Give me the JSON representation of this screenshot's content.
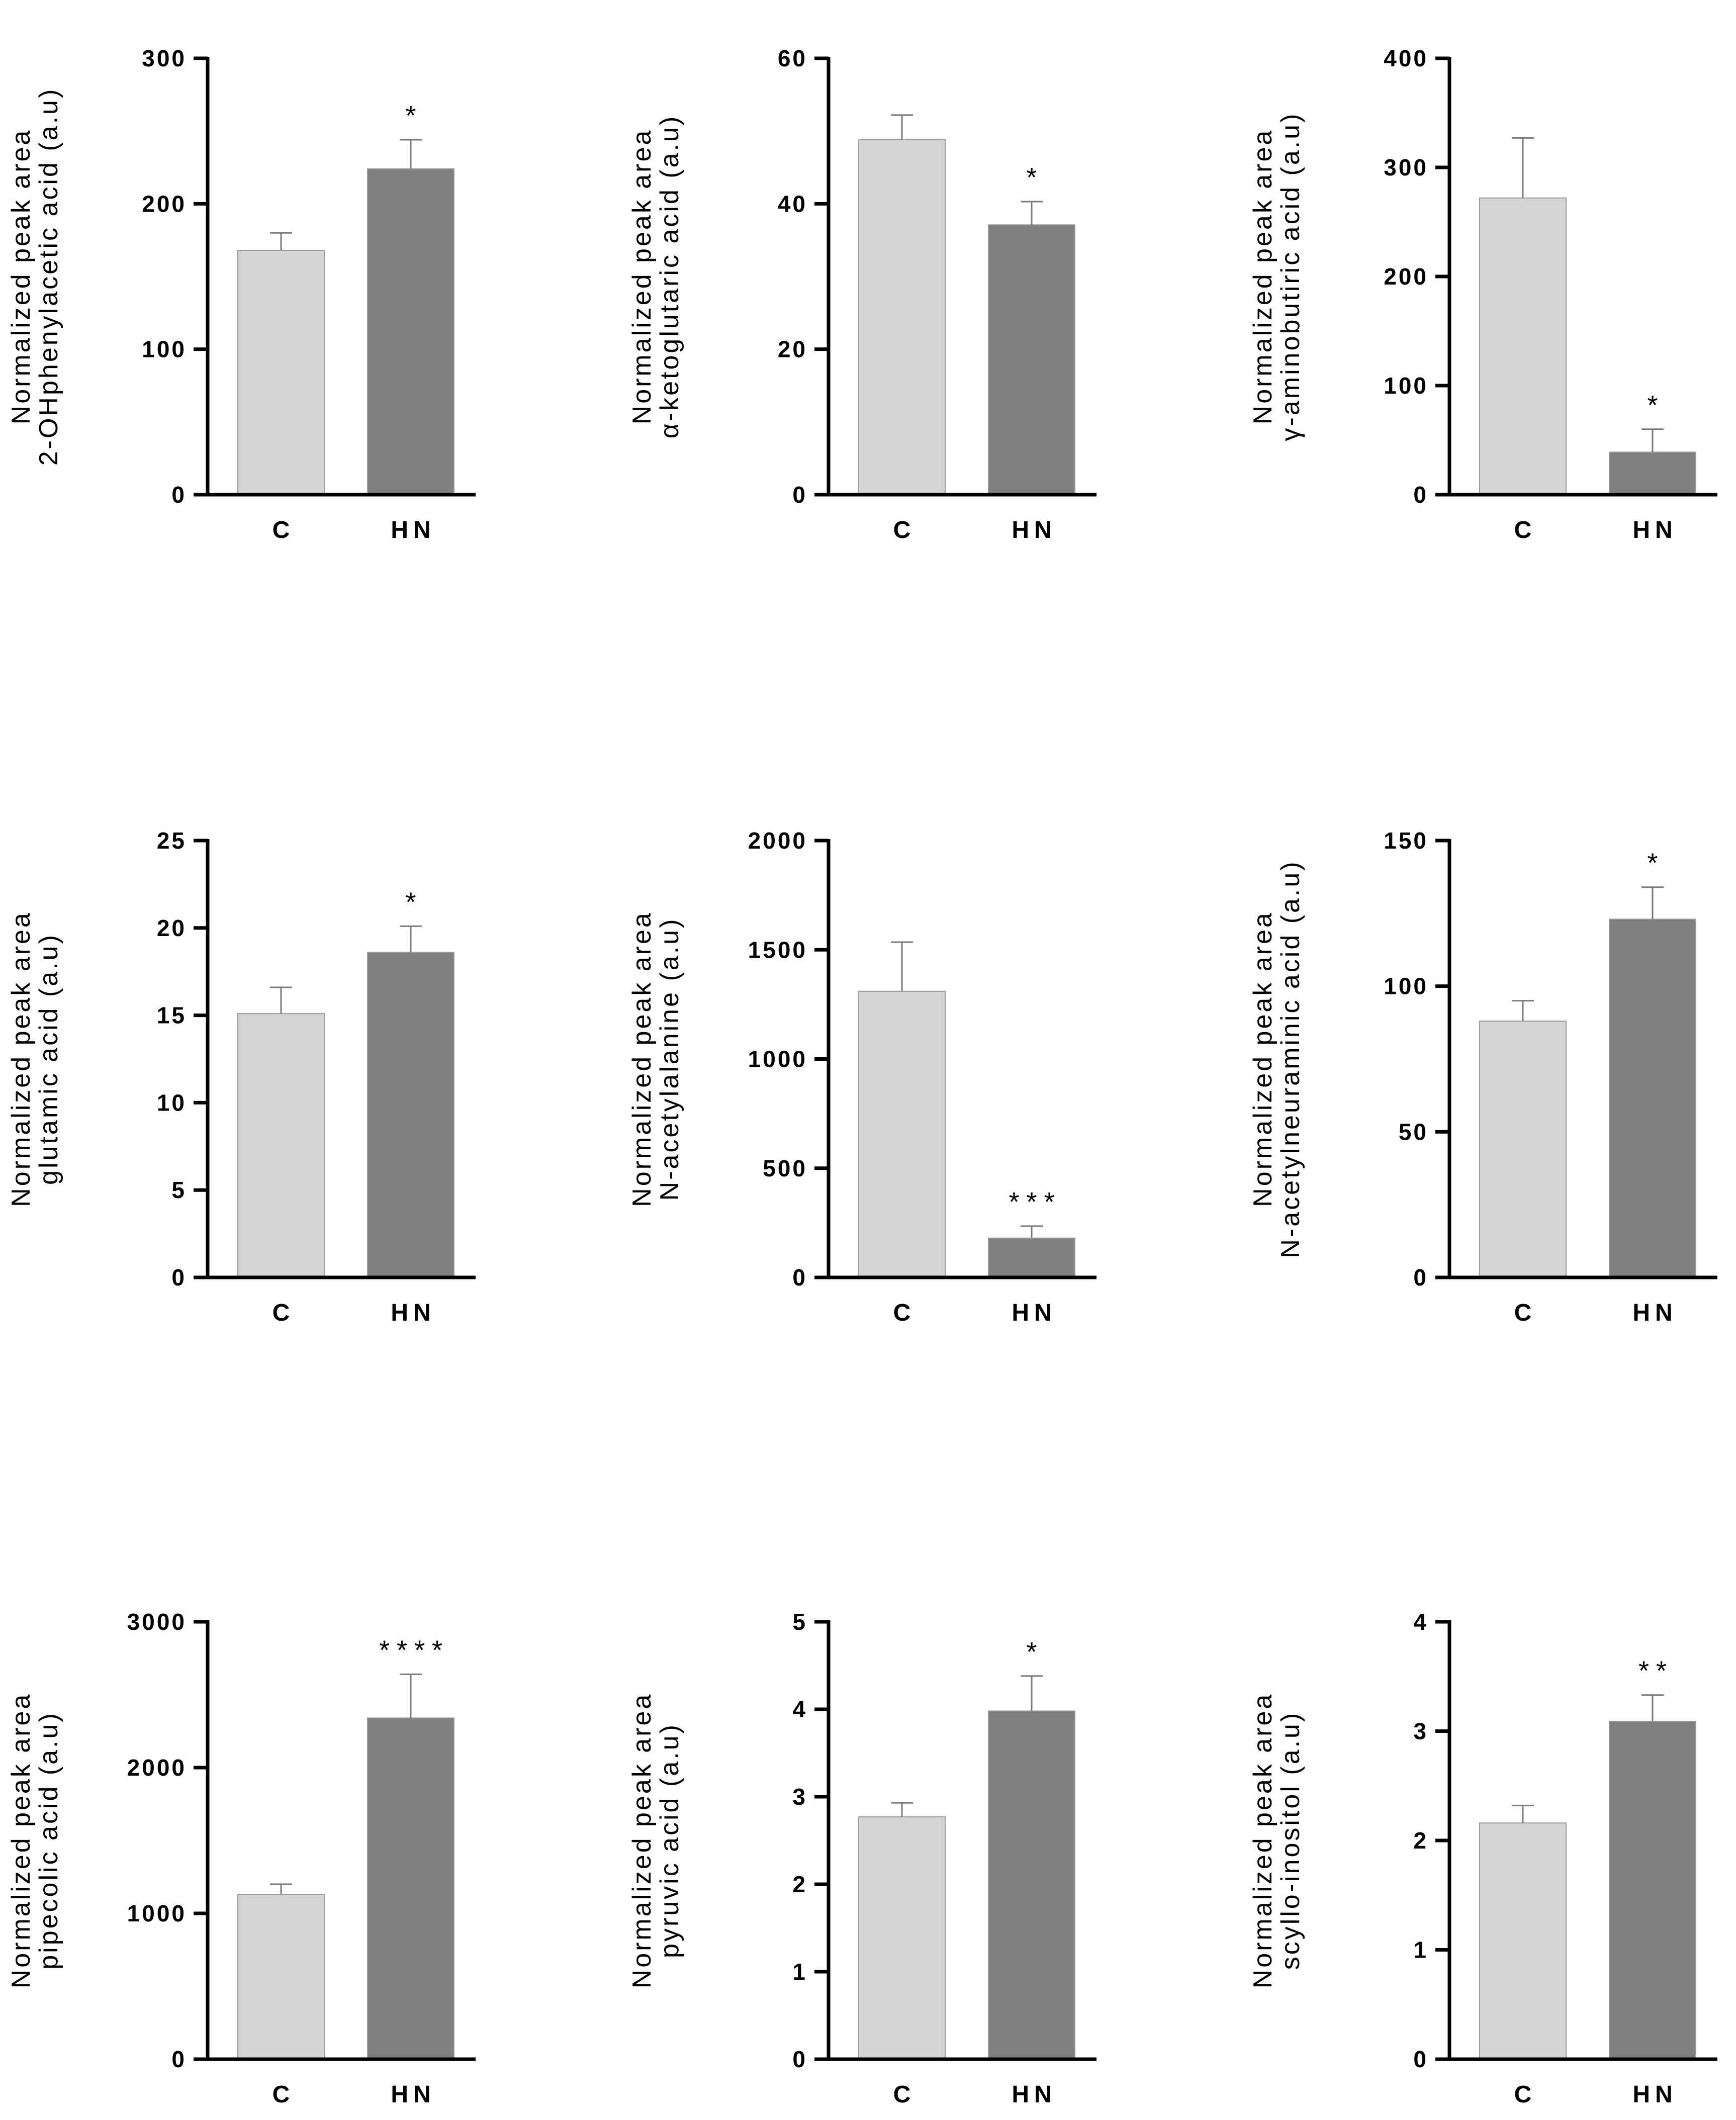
{
  "chart_data": [
    {
      "type": "bar",
      "title": "",
      "ylabel": [
        "Normalized peak area",
        "2-OHphenylacetic acid (a.u)"
      ],
      "xlabel": "",
      "categories": [
        "C",
        "HN"
      ],
      "values": [
        168,
        224
      ],
      "errors": [
        12,
        20
      ],
      "significance": [
        "",
        "*"
      ],
      "ylim": [
        0,
        300
      ],
      "yticks": [
        0,
        100,
        200,
        300
      ],
      "grid": false,
      "colors": [
        "#d4d4d4",
        "#7f7f7f"
      ]
    },
    {
      "type": "bar",
      "title": "",
      "ylabel": [
        "Normalized peak area",
        "α-ketoglutaric acid (a.u)"
      ],
      "xlabel": "",
      "categories": [
        "C",
        "HN"
      ],
      "values": [
        48.8,
        37.1
      ],
      "errors": [
        3.4,
        3.2
      ],
      "significance": [
        "",
        "*"
      ],
      "ylim": [
        0,
        60
      ],
      "yticks": [
        0,
        20,
        40,
        60
      ],
      "grid": false,
      "colors": [
        "#d4d4d4",
        "#7f7f7f"
      ]
    },
    {
      "type": "bar",
      "title": "",
      "ylabel": [
        "Normalized peak area",
        "γ-aminobutiric acid (a.u)"
      ],
      "xlabel": "",
      "categories": [
        "C",
        "HN"
      ],
      "values": [
        272,
        39
      ],
      "errors": [
        55,
        21
      ],
      "significance": [
        "",
        "*"
      ],
      "ylim": [
        0,
        400
      ],
      "yticks": [
        0,
        100,
        200,
        300,
        400
      ],
      "grid": false,
      "colors": [
        "#d4d4d4",
        "#7f7f7f"
      ]
    },
    {
      "type": "bar",
      "title": "",
      "ylabel": [
        "Normalized peak area",
        "glutamic acid (a.u)"
      ],
      "xlabel": "",
      "categories": [
        "C",
        "HN"
      ],
      "values": [
        15.1,
        18.6
      ],
      "errors": [
        1.5,
        1.5
      ],
      "significance": [
        "",
        "*"
      ],
      "ylim": [
        0,
        25
      ],
      "yticks": [
        0,
        5,
        10,
        15,
        20,
        25
      ],
      "grid": false,
      "colors": [
        "#d4d4d4",
        "#7f7f7f"
      ]
    },
    {
      "type": "bar",
      "title": "",
      "ylabel": [
        "Normalized peak area",
        "N-acetylalanine (a.u)"
      ],
      "xlabel": "",
      "categories": [
        "C",
        "HN"
      ],
      "values": [
        1310,
        180
      ],
      "errors": [
        225,
        55
      ],
      "significance": [
        "",
        "***"
      ],
      "ylim": [
        0,
        2000
      ],
      "yticks": [
        0,
        500,
        1000,
        1500,
        2000
      ],
      "grid": false,
      "colors": [
        "#d4d4d4",
        "#7f7f7f"
      ]
    },
    {
      "type": "bar",
      "title": "",
      "ylabel": [
        "Normalized peak area",
        "N-acetylneuraminic acid (a.u)"
      ],
      "xlabel": "",
      "categories": [
        "C",
        "HN"
      ],
      "values": [
        88,
        123
      ],
      "errors": [
        7,
        11
      ],
      "significance": [
        "",
        "*"
      ],
      "ylim": [
        0,
        150
      ],
      "yticks": [
        0,
        50,
        100,
        150
      ],
      "grid": false,
      "colors": [
        "#d4d4d4",
        "#7f7f7f"
      ]
    },
    {
      "type": "bar",
      "title": "",
      "ylabel": [
        "Normalized peak area",
        "pipecolic acid (a.u)"
      ],
      "xlabel": "",
      "categories": [
        "C",
        "HN"
      ],
      "values": [
        1130,
        2340
      ],
      "errors": [
        70,
        300
      ],
      "significance": [
        "",
        "****"
      ],
      "ylim": [
        0,
        3000
      ],
      "yticks": [
        0,
        1000,
        2000,
        3000
      ],
      "grid": false,
      "colors": [
        "#d4d4d4",
        "#7f7f7f"
      ]
    },
    {
      "type": "bar",
      "title": "",
      "ylabel": [
        "Normalized peak area",
        "pyruvic acid (a.u)"
      ],
      "xlabel": "",
      "categories": [
        "C",
        "HN"
      ],
      "values": [
        2.77,
        3.98
      ],
      "errors": [
        0.16,
        0.4
      ],
      "significance": [
        "",
        "*"
      ],
      "ylim": [
        0,
        5
      ],
      "yticks": [
        0,
        1,
        2,
        3,
        4,
        5
      ],
      "grid": false,
      "colors": [
        "#d4d4d4",
        "#7f7f7f"
      ]
    },
    {
      "type": "bar",
      "title": "",
      "ylabel": [
        "Normalized peak area",
        "scyllo-inositol (a.u)"
      ],
      "xlabel": "",
      "categories": [
        "C",
        "HN"
      ],
      "values": [
        2.16,
        3.09
      ],
      "errors": [
        0.16,
        0.24
      ],
      "significance": [
        "",
        "**"
      ],
      "ylim": [
        0,
        4
      ],
      "yticks": [
        0,
        1,
        2,
        3,
        4
      ],
      "grid": false,
      "colors": [
        "#d4d4d4",
        "#7f7f7f"
      ]
    }
  ]
}
